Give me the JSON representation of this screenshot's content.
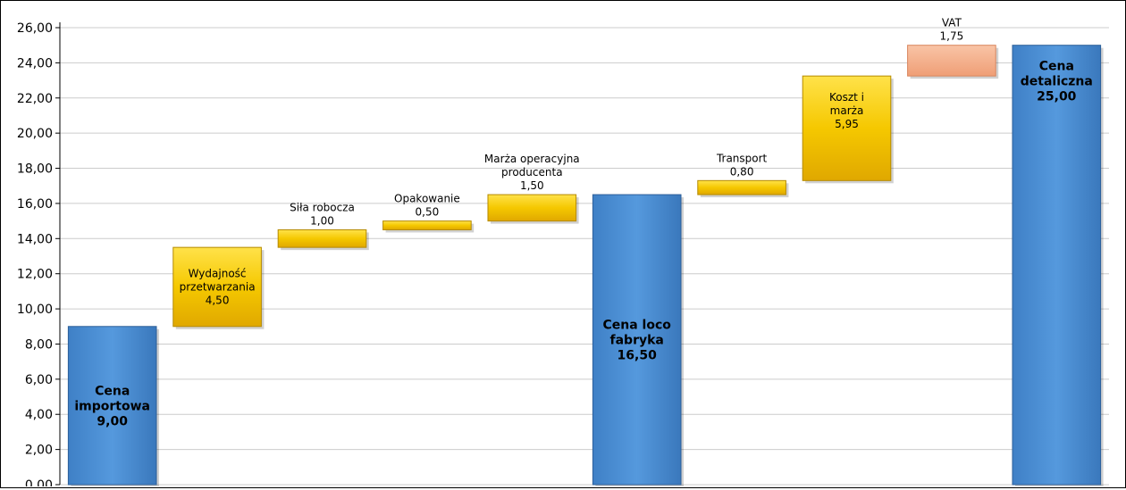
{
  "chart_data": {
    "type": "bar",
    "subtype": "waterfall",
    "title": "",
    "xlabel": "",
    "ylabel": "",
    "ylim": [
      0,
      26
    ],
    "y_tick_step": 2,
    "y_tick_labels": [
      "0,00",
      "2,00",
      "4,00",
      "6,00",
      "8,00",
      "10,00",
      "12,00",
      "14,00",
      "16,00",
      "18,00",
      "20,00",
      "22,00",
      "24,00",
      "26,00"
    ],
    "grid": true,
    "legend": "none",
    "colors": {
      "total": "#5599dd",
      "increment": "#f5c800",
      "tax": "#f5b08a",
      "grid": "#cccccc"
    },
    "bars": [
      {
        "label": "Cena\nimportowa",
        "value": 9.0,
        "base": 0,
        "kind": "total",
        "value_label": "9,00",
        "label_pos": "inside"
      },
      {
        "label": "Wydajność\nprzetwarzania",
        "value": 4.5,
        "base": 9.0,
        "kind": "increment",
        "value_label": "4,50",
        "label_pos": "inside"
      },
      {
        "label": "Siła robocza",
        "value": 1.0,
        "base": 13.5,
        "kind": "increment",
        "value_label": "1,00",
        "label_pos": "above"
      },
      {
        "label": "Opakowanie",
        "value": 0.5,
        "base": 14.5,
        "kind": "increment",
        "value_label": "0,50",
        "label_pos": "above"
      },
      {
        "label": "Marża operacyjna\nproducenta",
        "value": 1.5,
        "base": 15.0,
        "kind": "increment",
        "value_label": "1,50",
        "label_pos": "above"
      },
      {
        "label": "Cena loco\nfabryka",
        "value": 16.5,
        "base": 0,
        "kind": "total",
        "value_label": "16,50",
        "label_pos": "inside"
      },
      {
        "label": "Transport",
        "value": 0.8,
        "base": 16.5,
        "kind": "increment",
        "value_label": "0,80",
        "label_pos": "above"
      },
      {
        "label": "Koszt i\nmarża",
        "value": 5.95,
        "base": 17.3,
        "kind": "increment",
        "value_label": "5,95",
        "label_pos": "inside-top"
      },
      {
        "label": "VAT",
        "value": 1.75,
        "base": 23.25,
        "kind": "tax",
        "value_label": "1,75",
        "label_pos": "above"
      },
      {
        "label": "Cena\ndetaliczna",
        "value": 25.0,
        "base": 0,
        "kind": "total",
        "value_label": "25,00",
        "label_pos": "inside-top"
      }
    ]
  }
}
